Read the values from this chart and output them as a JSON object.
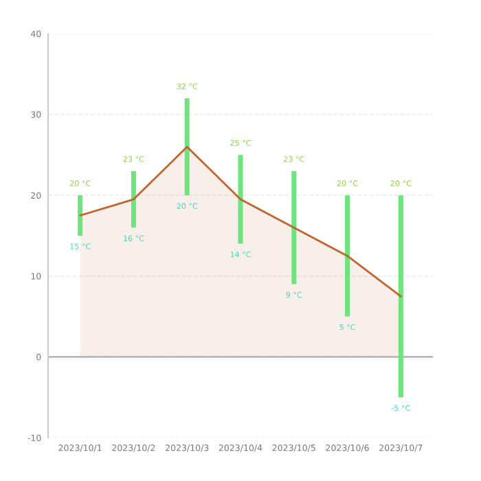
{
  "chart_data": {
    "type": "bar",
    "categories": [
      "2023/10/1",
      "2023/10/2",
      "2023/10/3",
      "2023/10/4",
      "2023/10/5",
      "2023/10/6",
      "2023/10/7"
    ],
    "series": [
      {
        "color": "#6ee37e",
        "base": [
          15,
          16,
          20,
          14,
          9,
          5,
          -5
        ],
        "values": [
          5,
          7,
          12,
          11,
          14,
          15,
          25
        ]
      },
      {
        "type": "area",
        "color": "#c0652e",
        "values": [
          17.5,
          19.5,
          26,
          19.5,
          16,
          12.5,
          7.5
        ]
      }
    ],
    "ylim": [
      -10,
      40
    ],
    "yticks": [
      -10,
      0,
      10,
      20,
      30,
      40
    ],
    "grid": "y",
    "ref_lines": [
      {
        "axis": "y",
        "value": 0,
        "color": "#aaaaaa"
      }
    ],
    "annotations": [
      {
        "text": "20 °C",
        "x": "2023/10/1",
        "y": 20
      },
      {
        "text": "15 °C",
        "x": "2023/10/1",
        "y": 15
      },
      {
        "text": "23 °C",
        "x": "2023/10/2",
        "y": 23
      },
      {
        "text": "16 °C",
        "x": "2023/10/2",
        "y": 16
      },
      {
        "text": "32 °C",
        "x": "2023/10/3",
        "y": 32
      },
      {
        "text": "20 °C",
        "x": "2023/10/3",
        "y": 20
      },
      {
        "text": "25 °C",
        "x": "2023/10/4",
        "y": 25
      },
      {
        "text": "14 °C",
        "x": "2023/10/4",
        "y": 14
      },
      {
        "text": "23 °C",
        "x": "2023/10/5",
        "y": 23
      },
      {
        "text": "9 °C",
        "x": "2023/10/5",
        "y": 9
      },
      {
        "text": "20 °C",
        "x": "2023/10/6",
        "y": 20
      },
      {
        "text": "5 °C",
        "x": "2023/10/6",
        "y": 5
      },
      {
        "text": "20 °C",
        "x": "2023/10/7",
        "y": 20
      },
      {
        "text": "-5 °C",
        "x": "2023/10/7",
        "y": -5
      }
    ]
  }
}
